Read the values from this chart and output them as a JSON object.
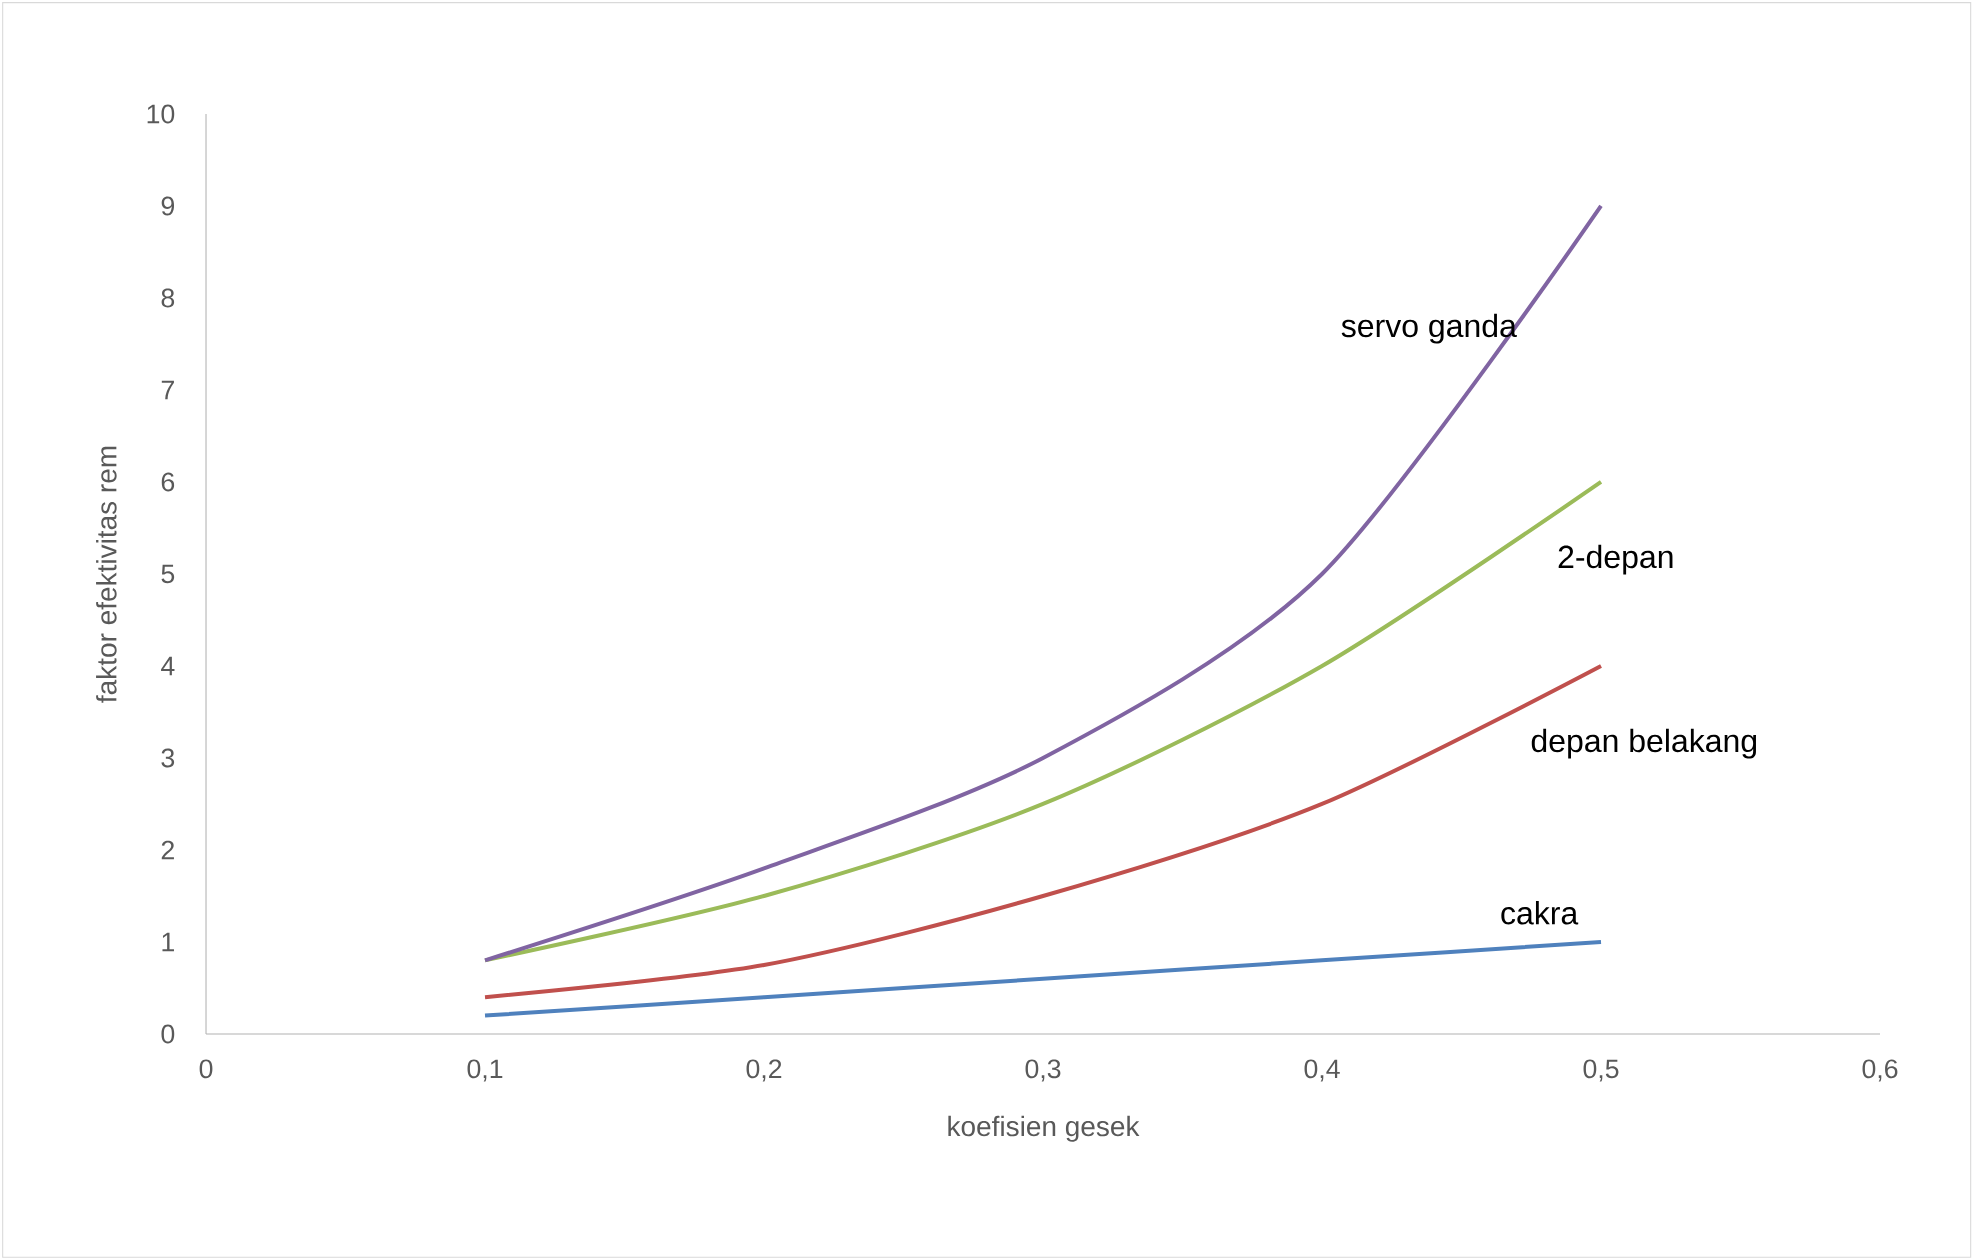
{
  "chart_data": {
    "type": "line",
    "xlabel": "koefisien gesek",
    "ylabel": "faktor efektivitas rem",
    "x": [
      0.1,
      0.2,
      0.3,
      0.4,
      0.5
    ],
    "series": [
      {
        "name": "cakra",
        "color": "#4f81bd",
        "values": [
          0.2,
          0.4,
          0.6,
          0.8,
          1.0
        ]
      },
      {
        "name": "depan belakang",
        "color": "#c0504d",
        "values": [
          0.4,
          0.75,
          1.5,
          2.5,
          4.0
        ]
      },
      {
        "name": "2-depan",
        "color": "#9bbb59",
        "values": [
          0.8,
          1.5,
          2.5,
          4.0,
          6.0
        ]
      },
      {
        "name": "servo ganda",
        "color": "#8064a2",
        "values": [
          0.8,
          1.8,
          3.0,
          5.0,
          9.0
        ]
      }
    ],
    "xlim": [
      0,
      0.6
    ],
    "ylim": [
      0,
      10
    ],
    "xticks": [
      0,
      {
        "value": 0.1,
        "label": "0,1"
      },
      {
        "value": 0.2,
        "label": "0,2"
      },
      {
        "value": 0.3,
        "label": "0,3"
      },
      {
        "value": 0.4,
        "label": "0,4"
      },
      {
        "value": 0.5,
        "label": "0,5"
      },
      {
        "value": 0.6,
        "label": "0,6"
      }
    ],
    "yticks": [
      0,
      1,
      2,
      3,
      4,
      5,
      6,
      7,
      8,
      9,
      10
    ],
    "grid": false,
    "legend": false,
    "marker": "none",
    "line_style": "solid"
  }
}
